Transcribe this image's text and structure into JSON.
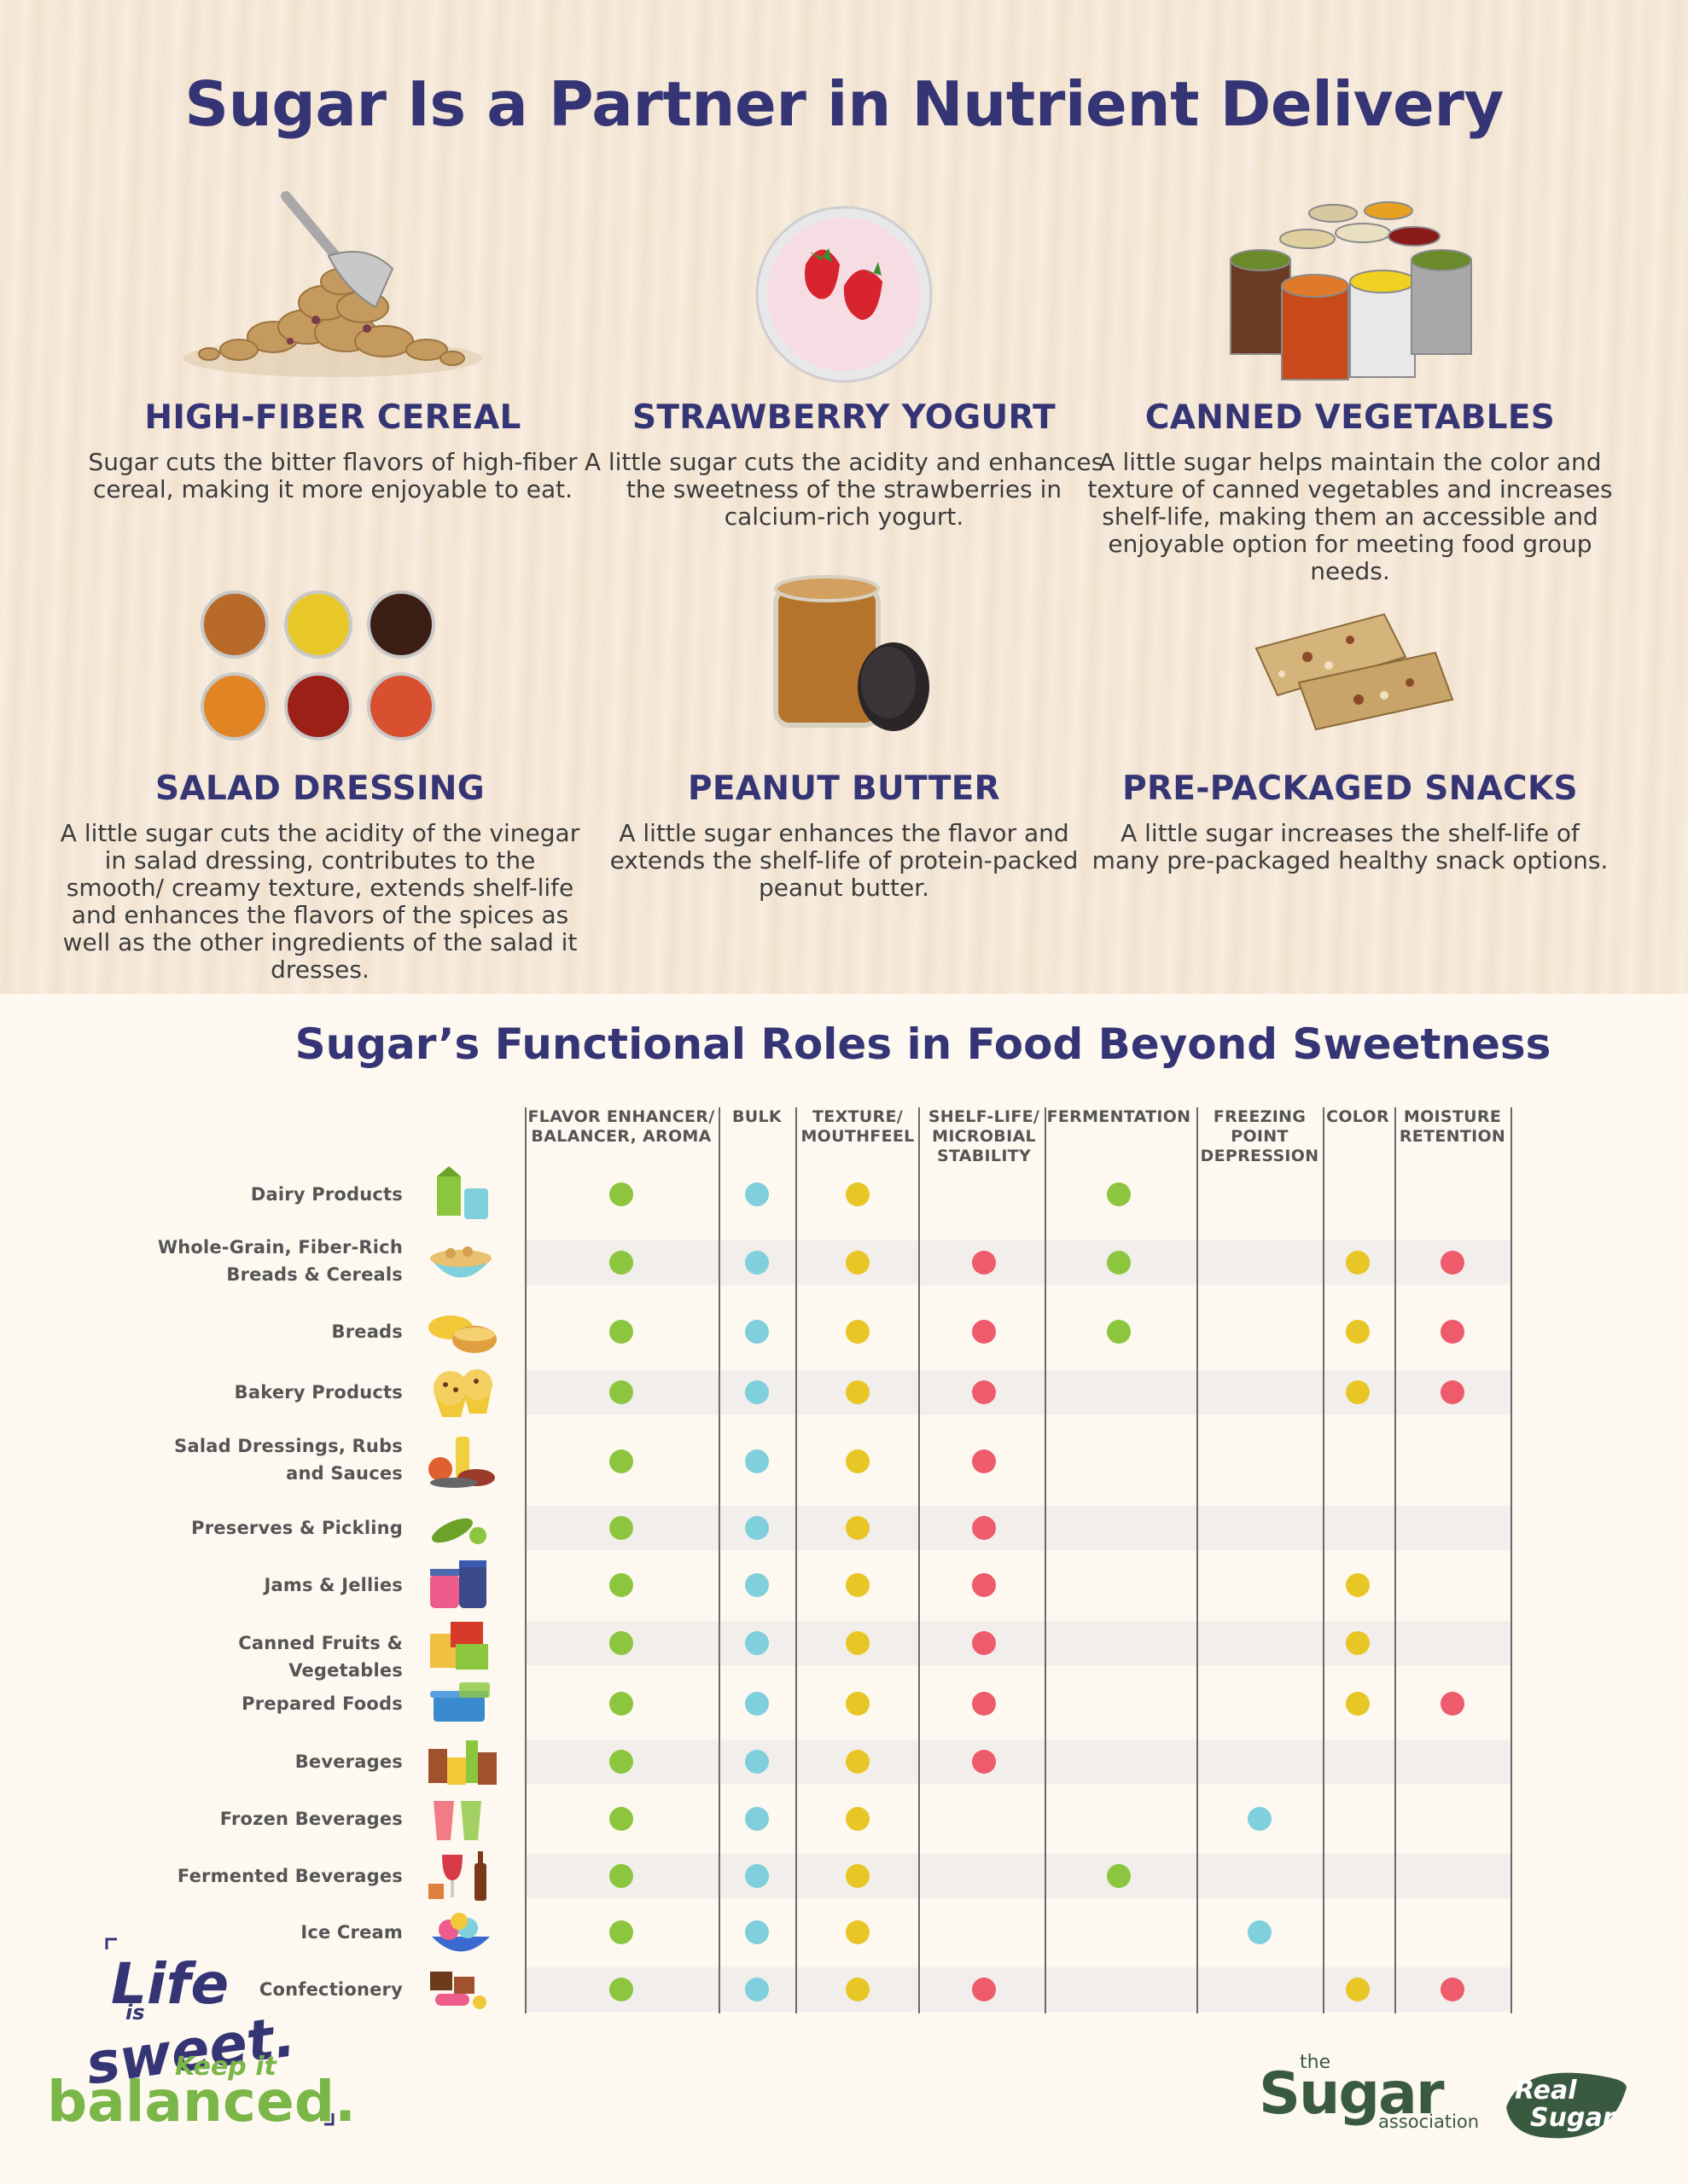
{
  "title": "Sugar Is a Partner in Nutrient Delivery",
  "foods": [
    {
      "name": "HIGH-FIBER CEREAL",
      "text": "Sugar cuts the bitter flavors of high-fiber cereal, making it more enjoyable to eat."
    },
    {
      "name": "STRAWBERRY YOGURT",
      "text": "A little sugar cuts the acidity and enhances the sweetness of the strawberries in calcium-rich yogurt."
    },
    {
      "name": "CANNED VEGETABLES",
      "text": "A little sugar helps maintain the color and texture of canned vegetables and increases shelf-life, making them an accessible and enjoyable option for meeting food group needs."
    },
    {
      "name": "SALAD DRESSING",
      "text": "A little sugar cuts the acidity of the vinegar in salad dressing, contributes to the smooth/ creamy texture, extends shelf-life and enhances the flavors of the spices as well as the other ingredients of the salad it dresses."
    },
    {
      "name": "PEANUT BUTTER",
      "text": "A little sugar enhances the flavor and extends the shelf-life of protein-packed peanut butter."
    },
    {
      "name": "PRE-PACKAGED SNACKS",
      "text": "A little sugar increases the shelf-life of many pre-packaged healthy snack options."
    }
  ],
  "table_title": "Sugar’s Functional Roles in Food Beyond Sweetness",
  "columns": [
    {
      "label": "FLAVOR ENHANCER/ BALANCER, AROMA",
      "color": "#8cc63f"
    },
    {
      "label": "BULK",
      "color": "#7fd0dc"
    },
    {
      "label": "TEXTURE/ MOUTHFEEL",
      "color": "#e8c626"
    },
    {
      "label": "SHELF-LIFE/ MICROBIAL STABILITY",
      "color": "#ee5c6c"
    },
    {
      "label": "FERMENTATION",
      "color": "#8cc63f"
    },
    {
      "label": "FREEZING POINT DEPRESSION",
      "color": "#7fd0dc"
    },
    {
      "label": "COLOR",
      "color": "#e8c626"
    },
    {
      "label": "MOISTURE RETENTION",
      "color": "#ee5c6c"
    }
  ],
  "rows": [
    {
      "label": "Dairy Products",
      "icon": "milk-carton-icon",
      "marks": [
        1,
        1,
        1,
        0,
        1,
        0,
        0,
        0
      ]
    },
    {
      "label": "Whole-Grain, Fiber-Rich Breads & Cereals",
      "icon": "cereal-bowl-icon",
      "marks": [
        1,
        1,
        1,
        1,
        1,
        0,
        1,
        1
      ]
    },
    {
      "label": "Breads",
      "icon": "bread-icon",
      "marks": [
        1,
        1,
        1,
        1,
        1,
        0,
        1,
        1
      ]
    },
    {
      "label": "Bakery Products",
      "icon": "muffin-icon",
      "marks": [
        1,
        1,
        1,
        1,
        0,
        0,
        1,
        1
      ]
    },
    {
      "label": "Salad Dressings, Rubs and Sauces",
      "icon": "sauce-bottle-icon",
      "marks": [
        1,
        1,
        1,
        1,
        0,
        0,
        0,
        0
      ]
    },
    {
      "label": "Preserves & Pickling",
      "icon": "pickle-icon",
      "marks": [
        1,
        1,
        1,
        1,
        0,
        0,
        0,
        0
      ]
    },
    {
      "label": "Jams & Jellies",
      "icon": "jam-jar-icon",
      "marks": [
        1,
        1,
        1,
        1,
        0,
        0,
        1,
        0
      ]
    },
    {
      "label": "Canned Fruits & Vegetables",
      "icon": "tin-can-icon",
      "marks": [
        1,
        1,
        1,
        1,
        0,
        0,
        1,
        0
      ]
    },
    {
      "label": "Prepared Foods",
      "icon": "food-container-icon",
      "marks": [
        1,
        1,
        1,
        1,
        0,
        0,
        1,
        1
      ]
    },
    {
      "label": "Beverages",
      "icon": "beverage-cups-icon",
      "marks": [
        1,
        1,
        1,
        1,
        0,
        0,
        0,
        0
      ]
    },
    {
      "label": "Frozen Beverages",
      "icon": "frozen-drink-icon",
      "marks": [
        1,
        1,
        1,
        0,
        0,
        1,
        0,
        0
      ]
    },
    {
      "label": "Fermented Beverages",
      "icon": "wine-bottle-icon",
      "marks": [
        1,
        1,
        1,
        0,
        1,
        0,
        0,
        0
      ]
    },
    {
      "label": "Ice Cream",
      "icon": "ice-cream-bowl-icon",
      "marks": [
        1,
        1,
        1,
        0,
        0,
        1,
        0,
        0
      ]
    },
    {
      "label": "Confectionery",
      "icon": "candy-icon",
      "marks": [
        1,
        1,
        1,
        1,
        0,
        0,
        1,
        1
      ]
    }
  ],
  "logos": {
    "life_sweet": {
      "line1": "Life",
      "line2": "is",
      "line3": "sweet.",
      "line4": "Keep it",
      "line5": "balanced."
    },
    "sugar_association": {
      "small": "the",
      "big": "Sugar",
      "tail": "association"
    },
    "real_sugar": {
      "line1": "Real",
      "line2": "Sugar"
    }
  }
}
